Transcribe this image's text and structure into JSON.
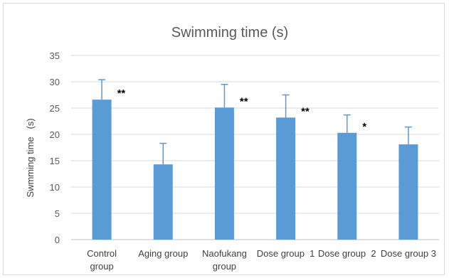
{
  "chart_data": {
    "type": "bar",
    "title": "Swimming time (s)",
    "ylabel": "Swmming time   (s)",
    "xlabel": "",
    "ylim": [
      0,
      35
    ],
    "yticks": [
      0,
      5,
      10,
      15,
      20,
      25,
      30,
      35
    ],
    "grid": true,
    "legend": "none",
    "bar_color": "#5b9bd5",
    "categories": [
      {
        "lines": [
          "Control",
          "group"
        ]
      },
      {
        "lines": [
          "Aging group"
        ]
      },
      {
        "lines": [
          "Naofukang",
          "group"
        ]
      },
      {
        "lines": [
          "Dose group  1"
        ]
      },
      {
        "lines": [
          "Dose group  2"
        ]
      },
      {
        "lines": [
          "Dose group 3"
        ]
      }
    ],
    "values": [
      26.6,
      14.3,
      25.1,
      23.2,
      20.3,
      18.1
    ],
    "errors": [
      3.8,
      4.0,
      4.4,
      4.3,
      3.4,
      3.3
    ],
    "significance": [
      "**",
      "",
      "**",
      "**",
      "*",
      ""
    ]
  }
}
